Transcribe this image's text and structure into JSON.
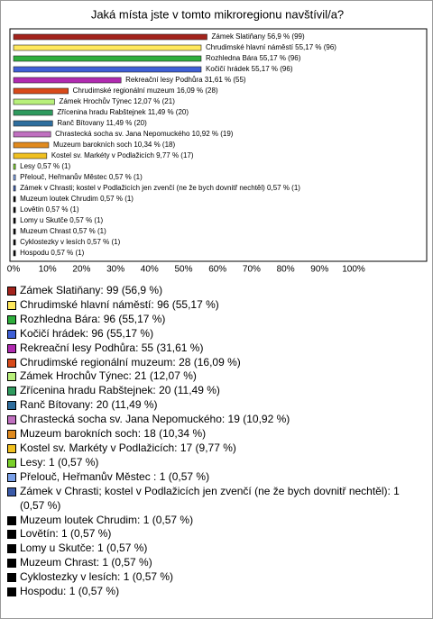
{
  "chart_data": {
    "type": "hbar",
    "title": "Jaká místa jste v tomto mikroregionu navštívil/a?",
    "values": [
      56.9,
      55.17,
      55.17,
      55.17,
      31.61,
      16.09,
      12.07,
      11.49,
      11.49,
      10.92,
      10.34,
      9.77,
      0.57,
      0.57,
      0.57,
      0.57,
      0.57,
      0.57,
      0.57,
      0.57,
      0.57
    ],
    "value_labels": [
      "Zámek Slatiňany 56,9 % (99)",
      "Chrudimské hlavní náměstí 55,17 % (96)",
      "Rozhledna Bára 55,17 % (96)",
      "Kočičí hrádek 55,17 % (96)",
      "Rekreační lesy Podhůra 31,61 % (55)",
      "Chrudimské regionální muzeum 16,09 % (28)",
      "Zámek Hrochův Týnec 12,07 % (21)",
      "Zřícenina hradu Rabštejnek 11,49 % (20)",
      "Ranč Bítovany 11,49 % (20)",
      "Chrastecká socha sv. Jana Nepomuckého 10,92 % (19)",
      "Muzeum barokních soch 10,34 % (18)",
      "Kostel sv. Markéty v Podlažicích 9,77 % (17)",
      "Lesy 0,57 % (1)",
      "Přelouč, Heřmanův Městec  0,57 % (1)",
      "Zámek v Chrasti; kostel v Podlažicích jen zvenčí (ne že bych dovnitř nechtěl) 0,57 % (1)",
      "Muzeum loutek Chrudim 0,57 % (1)",
      "Lovětín 0,57 % (1)",
      "Lomy u Skutče 0,57 % (1)",
      "Muzeum Chrast 0,57 % (1)",
      "Cyklostezky v lesích 0,57 % (1)",
      "Hospodu 0,57 % (1)"
    ],
    "legend": [
      "Zámek Slatiňany: 99 (56,9 %)",
      "Chrudimské hlavní náměstí: 96 (55,17 %)",
      "Rozhledna Bára: 96 (55,17 %)",
      "Kočičí hrádek: 96 (55,17 %)",
      "Rekreační lesy Podhůra: 55 (31,61 %)",
      "Chrudimské regionální muzeum: 28 (16,09 %)",
      "Zámek Hrochův Týnec: 21 (12,07 %)",
      "Zřícenina hradu Rabštejnek: 20 (11,49 %)",
      "Ranč Bítovany: 20 (11,49 %)",
      "Chrastecká socha sv. Jana Nepomuckého: 19 (10,92 %)",
      "Muzeum barokních soch: 18 (10,34 %)",
      "Kostel sv. Markéty v Podlažicích: 17 (9,77 %)",
      "Lesy: 1 (0,57 %)",
      "Přelouč, Heřmanův Městec : 1 (0,57 %)",
      "Zámek v Chrasti; kostel v Podlažicích jen zvenčí (ne že bych dovnitř nechtěl): 1 (0,57 %)",
      "Muzeum loutek Chrudim: 1 (0,57 %)",
      "Lovětín: 1 (0,57 %)",
      "Lomy u Skutče: 1 (0,57 %)",
      "Muzeum Chrast: 1 (0,57 %)",
      "Cyklostezky v lesích: 1 (0,57 %)",
      "Hospodu: 1 (0,57 %)"
    ],
    "colors": [
      "#a3231c",
      "#ffe85c",
      "#2eae3c",
      "#3e5fd6",
      "#b02ab0",
      "#d84a1a",
      "#b8f07a",
      "#2e9a5e",
      "#2e6e9e",
      "#c070c0",
      "#e08a1e",
      "#f0c020",
      "#7ad02a",
      "#7aa0e8",
      "#3a5aa8",
      "#000000",
      "#000000",
      "#000000",
      "#000000",
      "#000000",
      "#000000"
    ],
    "xlim": [
      0,
      100
    ],
    "xticks": [
      {
        "value": 0,
        "label": "0%"
      },
      {
        "value": 10,
        "label": "10%"
      },
      {
        "value": 20,
        "label": "20%"
      },
      {
        "value": 30,
        "label": "30%"
      },
      {
        "value": 40,
        "label": "40%"
      },
      {
        "value": 50,
        "label": "50%"
      },
      {
        "value": 60,
        "label": "60%"
      },
      {
        "value": 70,
        "label": "70%"
      },
      {
        "value": 80,
        "label": "80%"
      },
      {
        "value": 90,
        "label": "90%"
      },
      {
        "value": 100,
        "label": "100%"
      }
    ],
    "grid": false
  }
}
